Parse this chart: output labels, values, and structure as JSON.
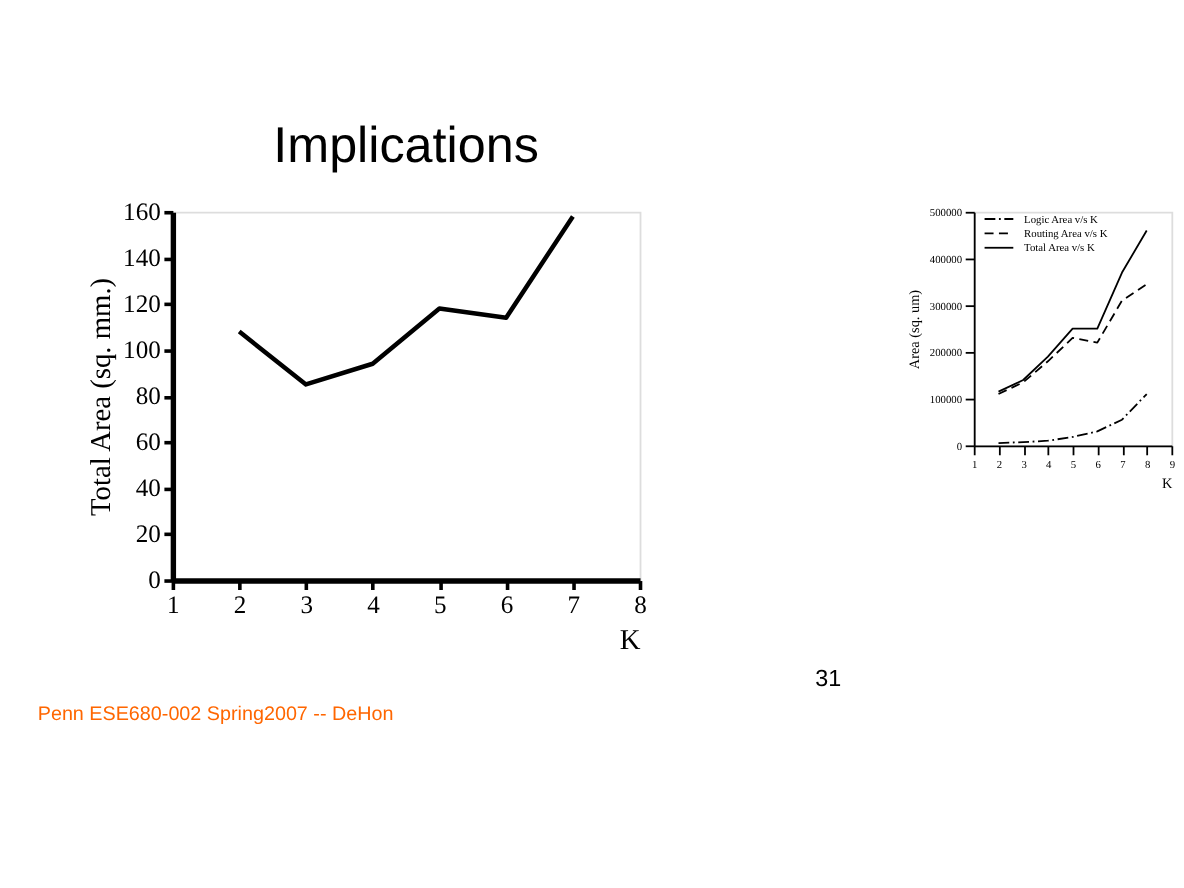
{
  "chart_data": [
    {
      "type": "line",
      "title": "Implications",
      "xlabel": "K",
      "ylabel": "Total Area (sq. mm.)",
      "x": [
        2,
        3,
        4,
        5,
        6,
        7
      ],
      "series": [
        {
          "color": "#000000",
          "values": [
            108,
            85,
            94,
            118,
            114,
            158
          ]
        }
      ],
      "xlim": [
        1,
        8
      ],
      "xticks": [
        1,
        2,
        3,
        4,
        5,
        6,
        7,
        8
      ],
      "ylim": [
        0,
        160
      ],
      "yticks": [
        0,
        20,
        40,
        60,
        80,
        100,
        120,
        140,
        160
      ],
      "grid": false,
      "marker": "none",
      "line_style": "solid",
      "annotations": [
        "Penn ESE680-002 Spring2007 -- DeHon",
        "31"
      ]
    },
    {
      "type": "line",
      "xlabel": "K",
      "ylabel": "Area (sq. um)",
      "x": [
        2,
        3,
        4,
        5,
        6,
        7,
        8
      ],
      "series": [
        {
          "name": "Logic Area v/s K",
          "color": "#000000",
          "line_style": "dashdot",
          "values": [
            5000,
            7000,
            10000,
            18000,
            30000,
            55000,
            110000
          ]
        },
        {
          "name": "Routing Area v/s K",
          "color": "#000000",
          "line_style": "dashed",
          "values": [
            110000,
            135000,
            180000,
            230000,
            220000,
            310000,
            345000
          ]
        },
        {
          "name": "Total Area v/s K",
          "color": "#000000",
          "line_style": "solid",
          "values": [
            115000,
            140000,
            190000,
            250000,
            250000,
            370000,
            460000
          ]
        }
      ],
      "xlim": [
        1,
        9
      ],
      "xticks": [
        1,
        2,
        3,
        4,
        5,
        6,
        7,
        8,
        9
      ],
      "ylim": [
        0,
        500000
      ],
      "yticks": [
        0,
        100000,
        200000,
        300000,
        400000,
        500000
      ],
      "grid": false,
      "legend": "top left",
      "marker": "none"
    }
  ]
}
